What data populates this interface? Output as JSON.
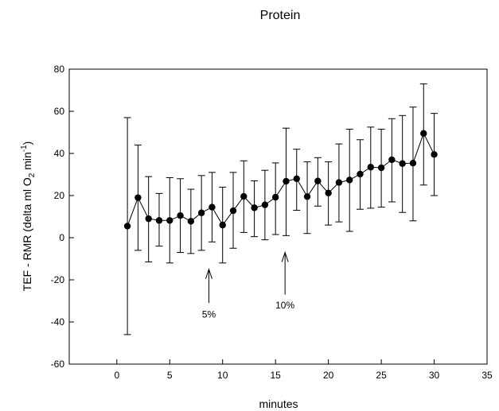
{
  "chart_data": {
    "type": "scatter",
    "title": "Protein",
    "xlabel": "minutes",
    "ylabel": {
      "prefix": "TEF - RMR (delta ml O",
      "sub": "2",
      "middle": " min",
      "sup": "-1",
      "suffix": ")"
    },
    "xlim": [
      -4.5,
      35
    ],
    "ylim": [
      -60,
      80
    ],
    "xticks": [
      0,
      5,
      10,
      15,
      20,
      25,
      30,
      35
    ],
    "xtick_labels": [
      "0",
      "5",
      "10",
      "15",
      "20",
      "25",
      "30",
      "35"
    ],
    "yticks": [
      -60,
      -40,
      -20,
      0,
      20,
      40,
      60,
      80
    ],
    "ytick_labels": [
      "-60",
      "-40",
      "-20",
      "0",
      "20",
      "40",
      "60",
      "80"
    ],
    "grid": false,
    "legend": "none",
    "series": [
      {
        "x": [
          1,
          2,
          3,
          4,
          5,
          6,
          7,
          8,
          9,
          10,
          11,
          12,
          13,
          14,
          15,
          16,
          17,
          18,
          19,
          20,
          21,
          22,
          23,
          24,
          25,
          26,
          27,
          28,
          29,
          30
        ],
        "y": [
          5.5,
          19,
          9,
          8.2,
          8.2,
          10.5,
          7.8,
          11.8,
          14.5,
          6,
          12.8,
          19.6,
          14.2,
          15.6,
          19.2,
          26.8,
          28,
          19.5,
          26.9,
          21.2,
          26.2,
          27.4,
          30.2,
          33.5,
          33.2,
          37,
          35.2,
          35.4,
          49.5,
          39.5
        ],
        "err_low": [
          -46,
          -6,
          -11.5,
          -4,
          -12,
          -7,
          -7.5,
          -6,
          -2,
          -12,
          -5,
          2.5,
          0.5,
          -1,
          1.5,
          1,
          13,
          2,
          15,
          6,
          7.5,
          3,
          13.5,
          14,
          14.5,
          17,
          12,
          8,
          25,
          20
        ],
        "err_high": [
          57,
          44,
          29,
          21,
          28.5,
          28,
          23,
          29.5,
          31,
          24,
          31,
          36.5,
          27,
          32,
          35.5,
          52,
          42,
          36,
          38,
          36,
          44.5,
          51.5,
          46.5,
          52.5,
          51.5,
          56.5,
          58,
          62,
          73,
          59
        ]
      }
    ],
    "annotations": [
      {
        "text": "5%",
        "x": 8.7,
        "arrow_tip_y": -15,
        "arrow_tail_y": -31,
        "label_y": -36.5
      },
      {
        "text": "10%",
        "x": 15.9,
        "arrow_tip_y": -7,
        "arrow_tail_y": -27,
        "label_y": -32
      }
    ]
  }
}
